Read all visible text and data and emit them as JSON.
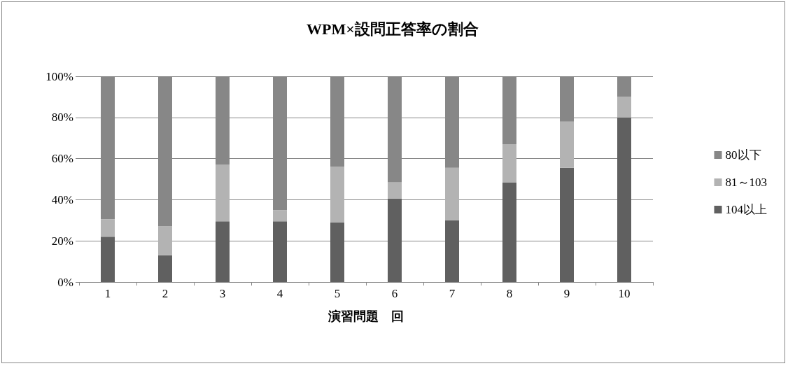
{
  "chart_data": {
    "type": "bar",
    "title": "WPM×設問正答率の割合",
    "xlabel": "演習問題　回",
    "categories": [
      "1",
      "2",
      "3",
      "4",
      "5",
      "6",
      "7",
      "8",
      "9",
      "10"
    ],
    "stacked": true,
    "series": [
      {
        "name": "104以上",
        "color": "#606060",
        "values": [
          22,
          13,
          29.5,
          29.5,
          29,
          40.5,
          30,
          48.5,
          55.5,
          80
        ]
      },
      {
        "name": "81～103",
        "color": "#b3b3b3",
        "values": [
          8.5,
          14,
          27.5,
          5.5,
          27,
          8,
          25.5,
          18.5,
          22.5,
          10
        ]
      },
      {
        "name": "80以下",
        "color": "#878787",
        "values": [
          69.5,
          73,
          43,
          65,
          44,
          51.5,
          44.5,
          33,
          22,
          10
        ]
      }
    ],
    "ylim": [
      0,
      100
    ],
    "yticks": [
      {
        "value": 0,
        "label": "0%"
      },
      {
        "value": 20,
        "label": "20%"
      },
      {
        "value": 40,
        "label": "40%"
      },
      {
        "value": 60,
        "label": "60%"
      },
      {
        "value": 80,
        "label": "80%"
      },
      {
        "value": 100,
        "label": "100%"
      }
    ],
    "grid": "y",
    "legend": "right"
  }
}
